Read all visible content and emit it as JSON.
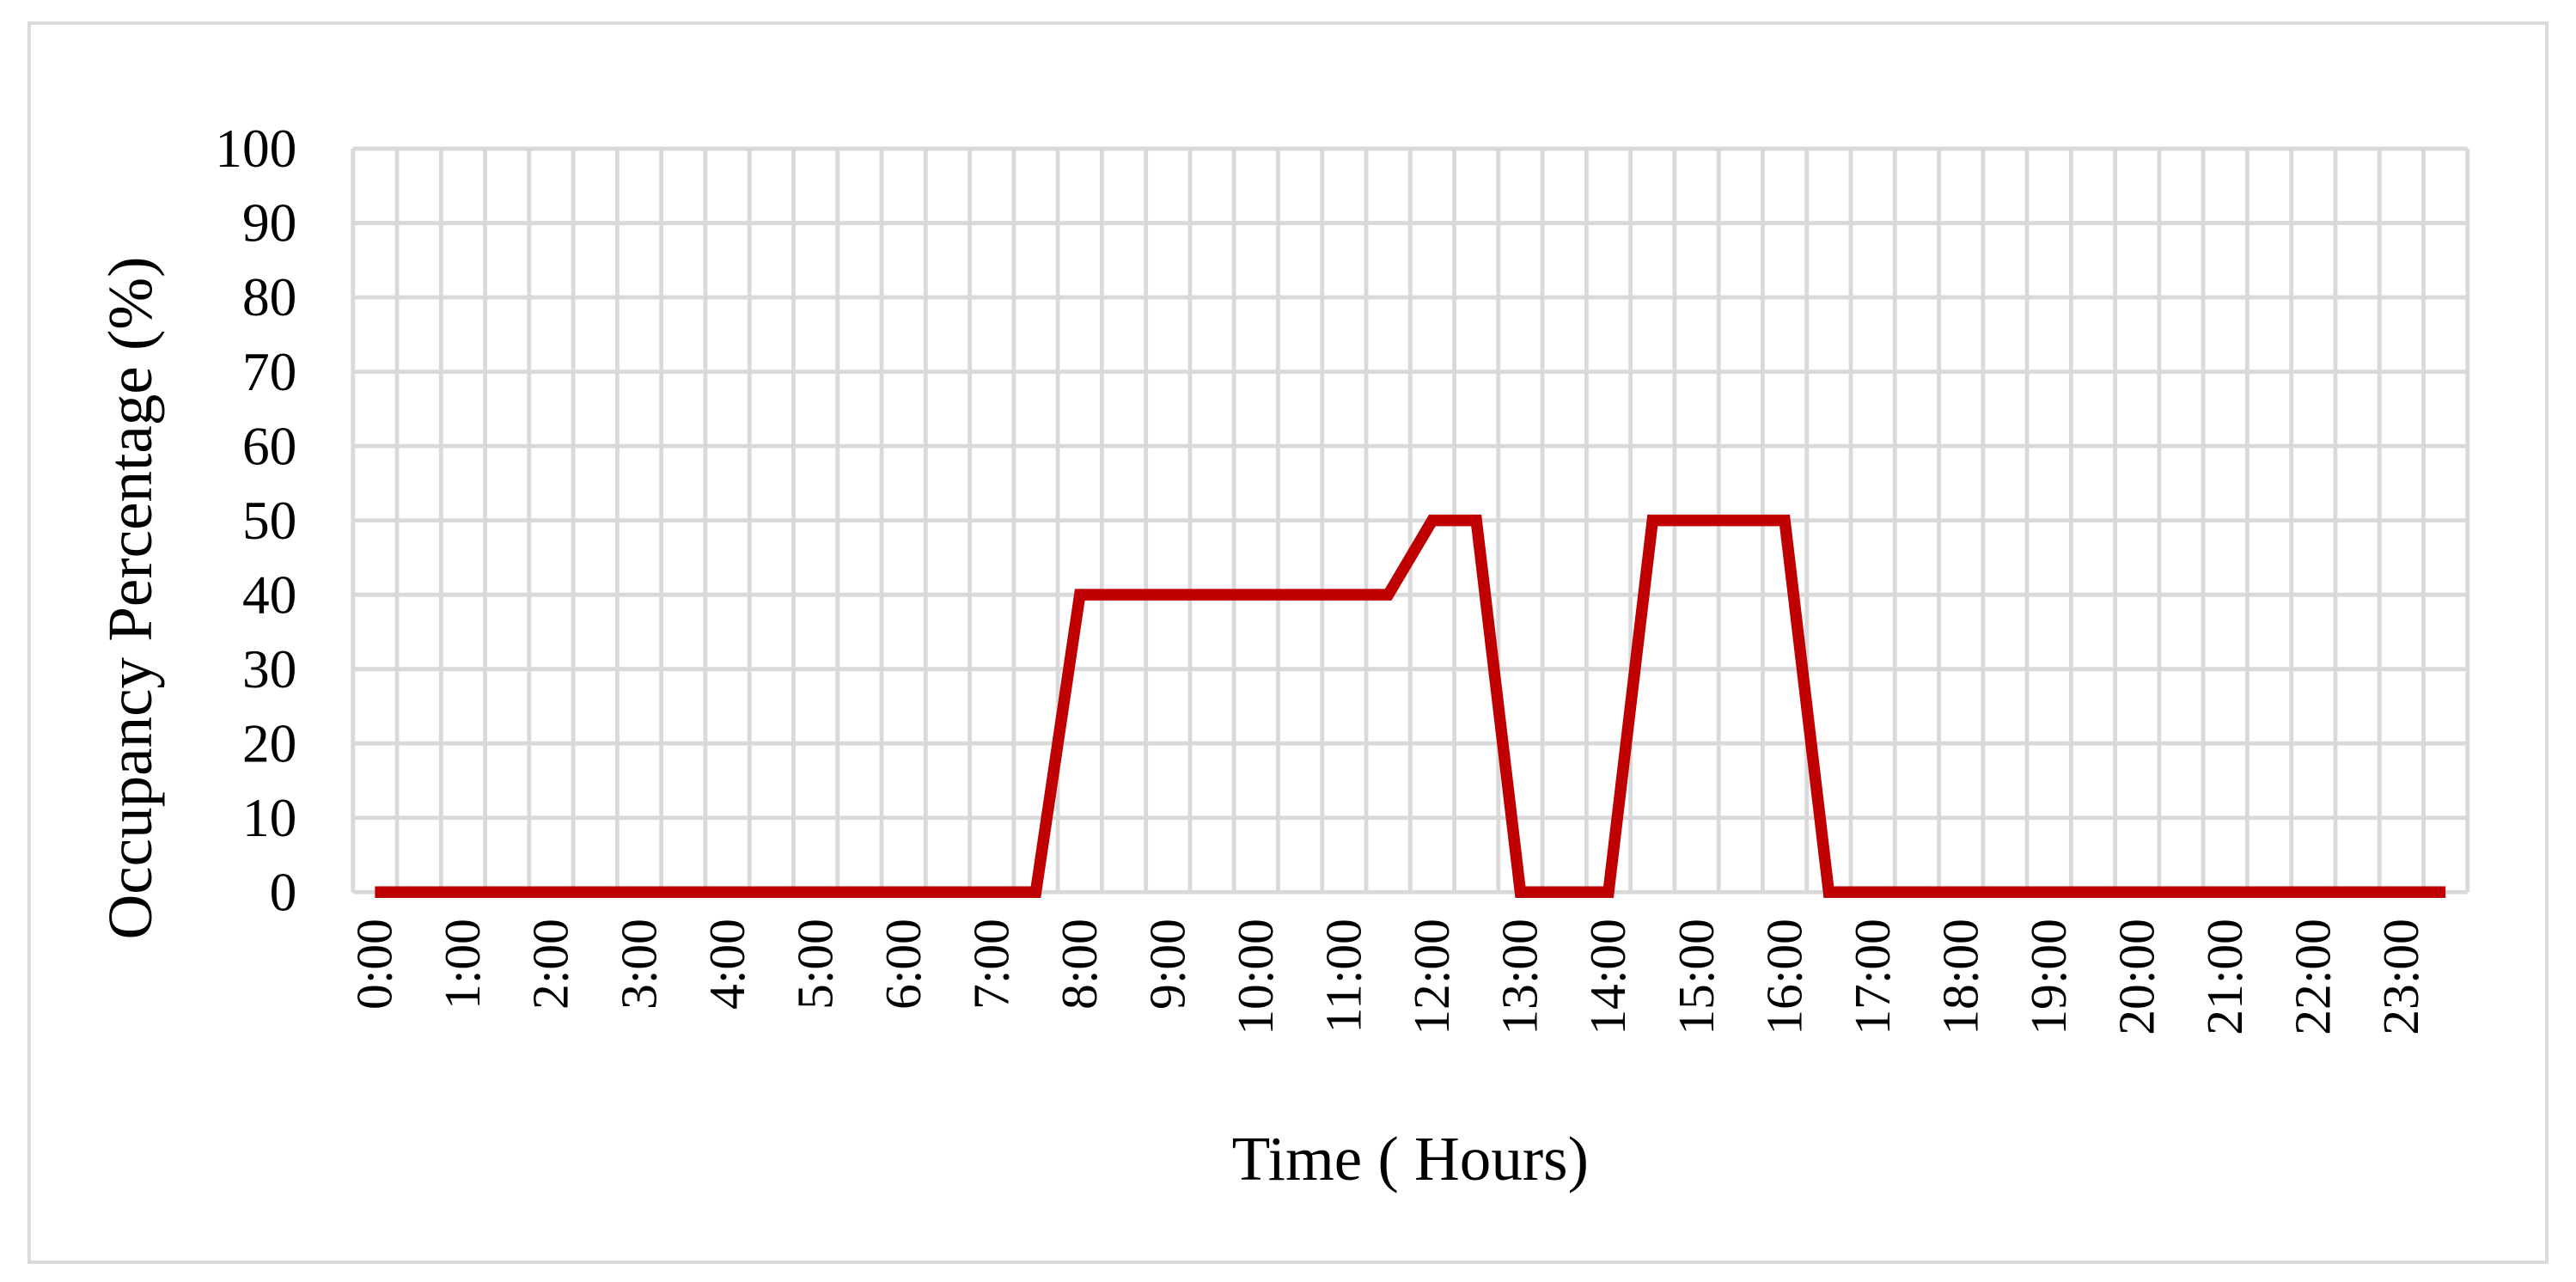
{
  "chart_data": {
    "type": "line",
    "x_label": "Time ( Hours)",
    "y_label": "Occupancy Percentage (%)",
    "categories": [
      "0:00",
      null,
      "1:00",
      null,
      "2:00",
      null,
      "3:00",
      null,
      "4:00",
      null,
      "5:00",
      null,
      "6:00",
      null,
      "7:00",
      null,
      "8:00",
      null,
      "9:00",
      null,
      "10:00",
      null,
      "11:00",
      null,
      "12:00",
      null,
      "13:00",
      null,
      "14:00",
      null,
      "15:00",
      null,
      "16:00",
      null,
      "17:00",
      null,
      "18:00",
      null,
      "19:00",
      null,
      "20:00",
      null,
      "21:00",
      null,
      "22:00",
      null,
      "23:00",
      null
    ],
    "series": [
      {
        "name": "Occupancy",
        "color": "#c00000",
        "values": [
          0,
          0,
          0,
          0,
          0,
          0,
          0,
          0,
          0,
          0,
          0,
          0,
          0,
          0,
          0,
          0,
          40,
          40,
          40,
          40,
          40,
          40,
          40,
          40,
          50,
          50,
          0,
          0,
          0,
          50,
          50,
          50,
          50,
          0,
          0,
          0,
          0,
          0,
          0,
          0,
          0,
          0,
          0,
          0,
          0,
          0,
          0,
          0
        ]
      }
    ],
    "ylim": [
      0,
      100
    ],
    "yticks": [
      0,
      10,
      20,
      30,
      40,
      50,
      60,
      70,
      80,
      90,
      100
    ],
    "grid": true
  }
}
